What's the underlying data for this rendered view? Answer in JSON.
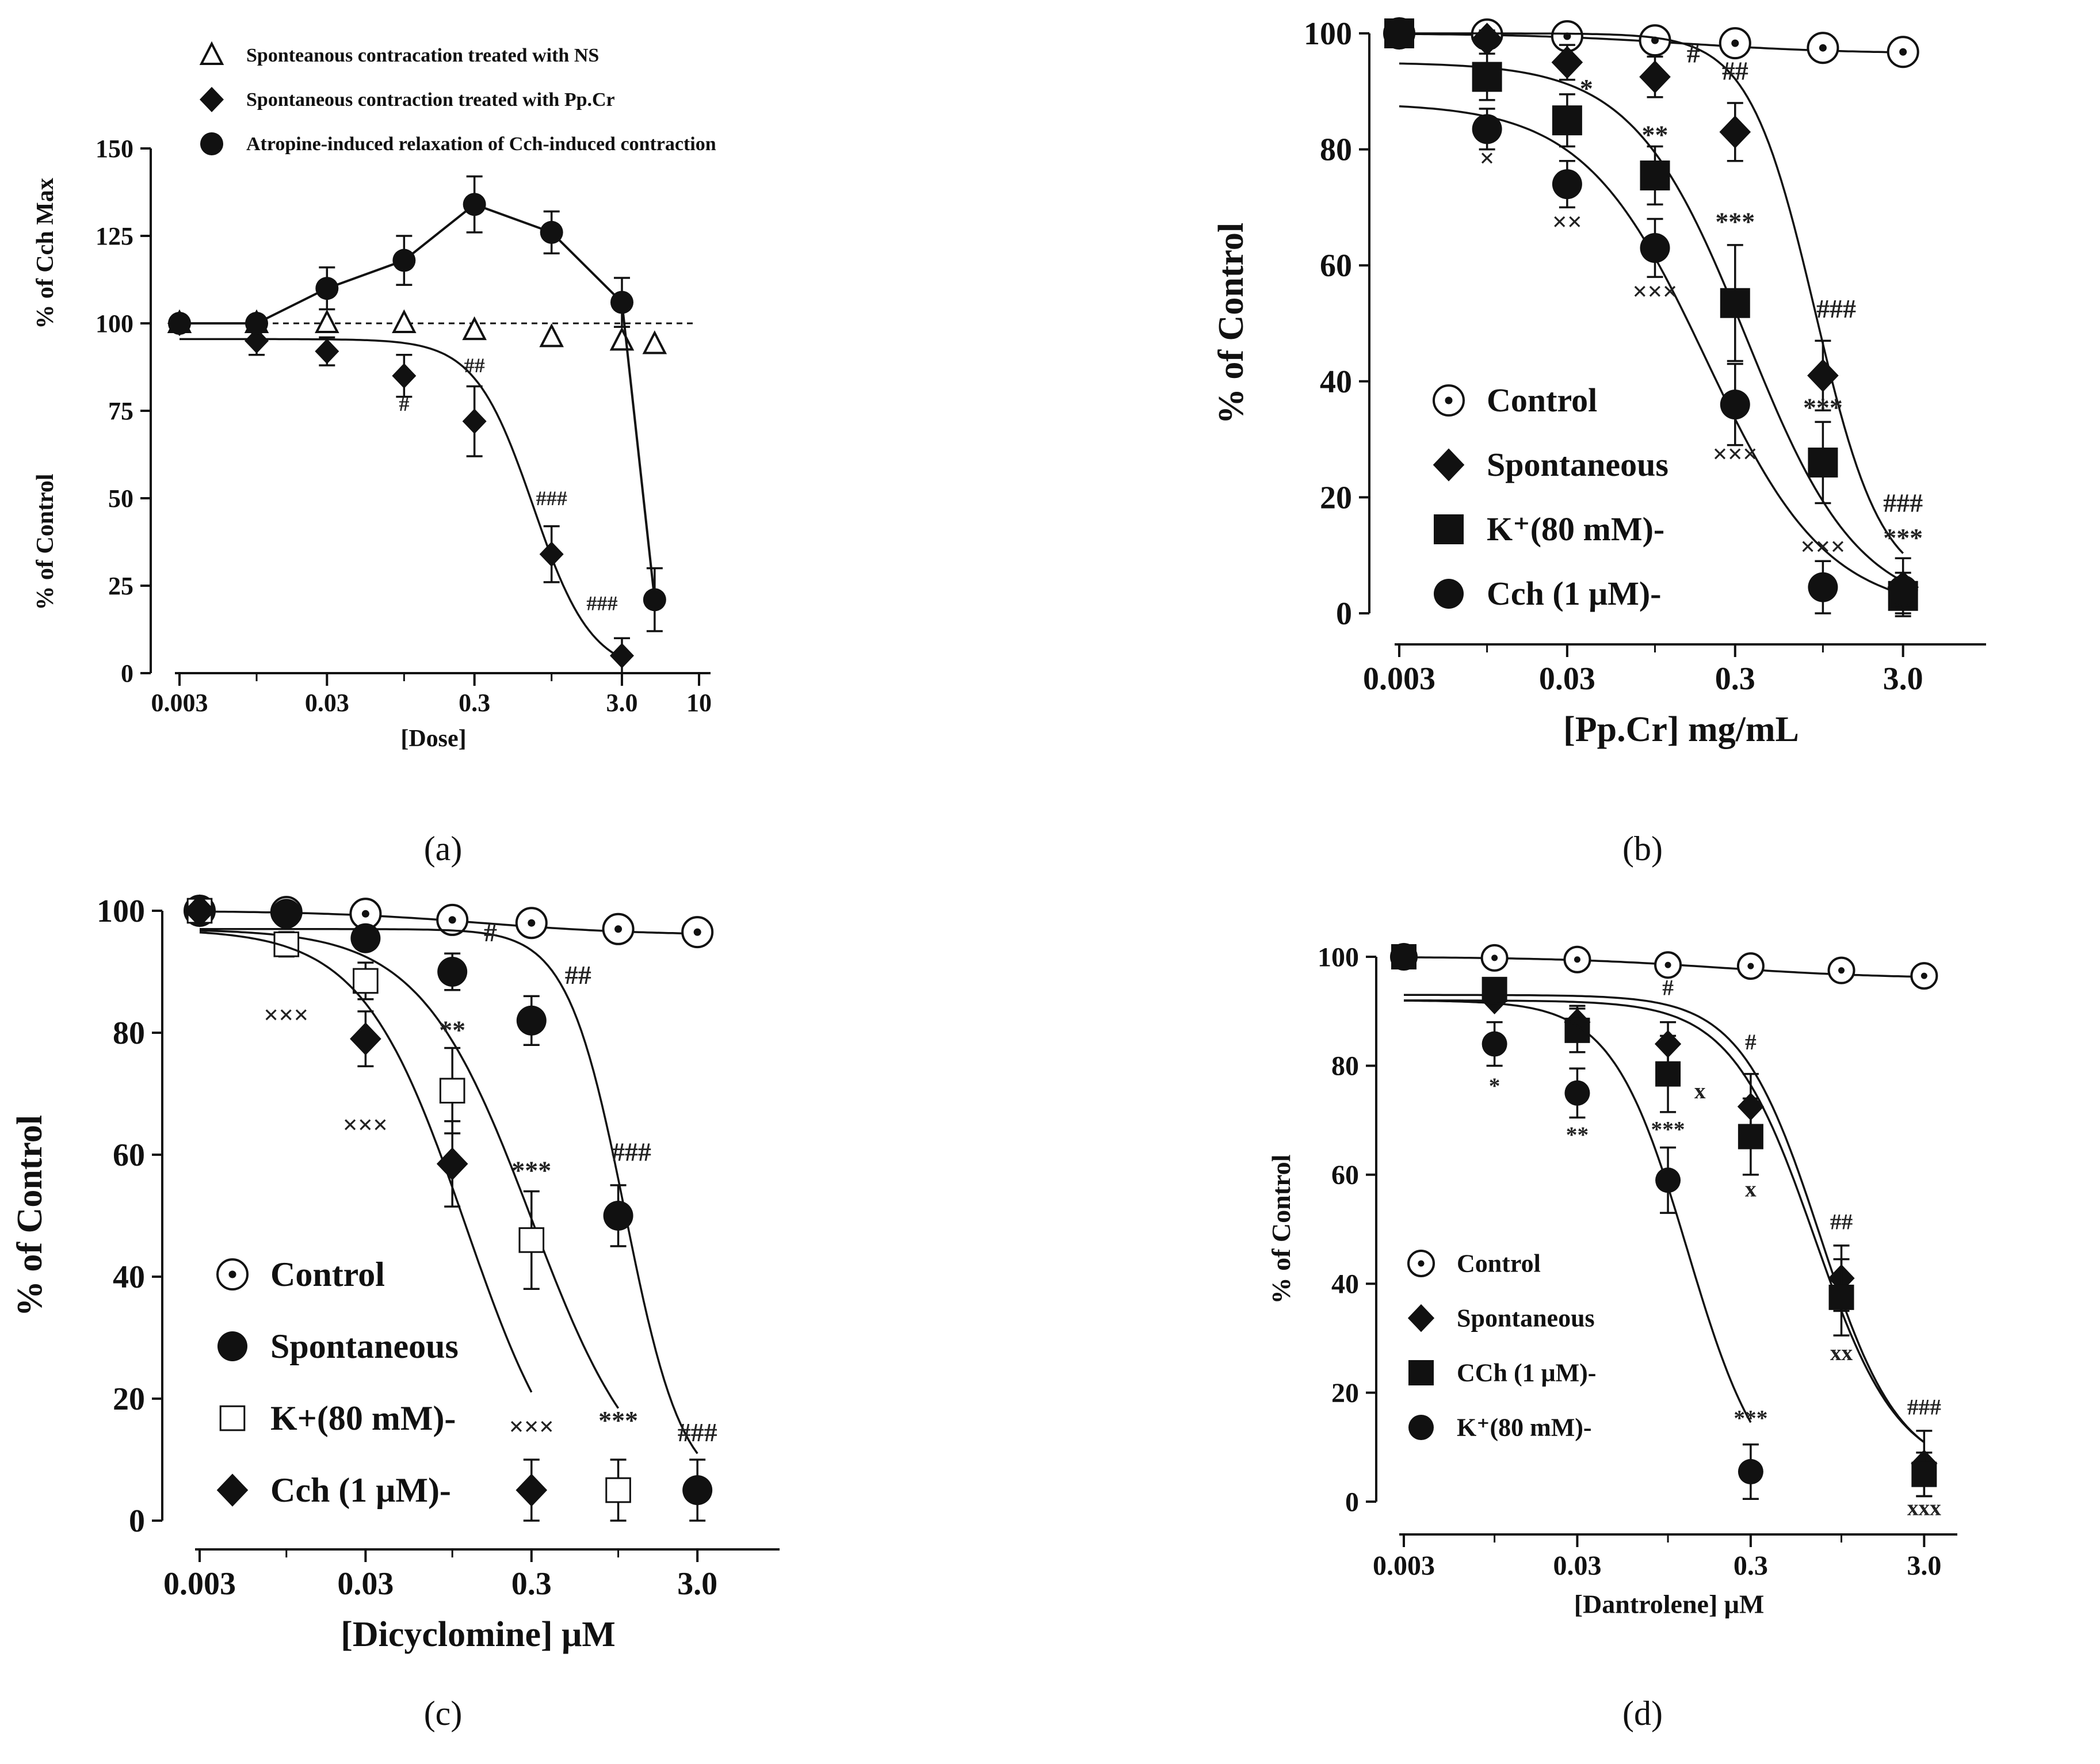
{
  "colors": {
    "ink": "#111111",
    "dashed": "#111111"
  },
  "chart_data": [
    {
      "panel": "a",
      "panel_label": "(a)",
      "type": "line",
      "xscale": "log",
      "xlabel": "[Dose]",
      "xlim": [
        0.003,
        10
      ],
      "xticks": [
        0.003,
        0.03,
        0.3,
        3.0,
        10
      ],
      "xtick_labels": [
        "0.003",
        "0.03",
        "0.3",
        "3.0",
        "10"
      ],
      "ylim": [
        0,
        150
      ],
      "yticks": [
        0,
        25,
        50,
        75,
        100,
        125,
        150
      ],
      "ytick_labels": [
        "0",
        "25",
        "50",
        "75",
        "100",
        "125",
        "150"
      ],
      "ylabel_top": "% of Cch Max",
      "ylabel_bottom": "% of Control",
      "reference_line": 100,
      "legend_position": "top",
      "series": [
        {
          "name": "Sponteanous contracation treated with NS",
          "marker": "triangle-open",
          "x": [
            0.003,
            0.01,
            0.03,
            0.1,
            0.3,
            1,
            3,
            5
          ],
          "y": [
            100,
            100,
            100,
            100,
            98,
            96,
            95,
            94
          ],
          "err": [
            0,
            0,
            0,
            0,
            0,
            0,
            0,
            0
          ],
          "curve": "none",
          "sig": []
        },
        {
          "name": "Spontaneous contraction treated with Pp.Cr",
          "marker": "diamond",
          "x": [
            0.003,
            0.01,
            0.03,
            0.1,
            0.3,
            1,
            3
          ],
          "y": [
            100,
            95,
            92,
            85,
            72,
            34,
            5
          ],
          "err": [
            0,
            4,
            4,
            6,
            10,
            8,
            5
          ],
          "curve": {
            "top": 95.5,
            "bottom": 0,
            "ec50": 0.75,
            "slope": 2.2
          },
          "sig": [
            [
              "#",
              0.1,
              75,
              "below"
            ],
            [
              "##",
              0.3,
              86,
              "above"
            ],
            [
              "###",
              1,
              48,
              "above"
            ],
            [
              "###",
              2.2,
              18,
              "above"
            ]
          ]
        },
        {
          "name": "Atropine-induced relaxation of Cch-induced contraction",
          "marker": "circle",
          "x": [
            0.003,
            0.01,
            0.03,
            0.1,
            0.3,
            1,
            3,
            5
          ],
          "y": [
            100,
            100,
            110,
            118,
            134,
            126,
            106,
            21
          ],
          "err": [
            0,
            0,
            6,
            7,
            8,
            6,
            7,
            9
          ],
          "curve": "connect",
          "sig": []
        }
      ]
    },
    {
      "panel": "b",
      "panel_label": "(b)",
      "type": "line",
      "xscale": "log",
      "xlabel": "[Pp.Cr] mg/mL",
      "xlim": [
        0.003,
        8
      ],
      "xticks": [
        0.003,
        0.03,
        0.3,
        3.0
      ],
      "xtick_labels": [
        "0.003",
        "0.03",
        "0.3",
        "3.0"
      ],
      "ylim": [
        0,
        100
      ],
      "yticks": [
        0,
        20,
        40,
        60,
        80,
        100
      ],
      "ytick_labels": [
        "0",
        "20",
        "40",
        "60",
        "80",
        "100"
      ],
      "ylabel": "% of Control",
      "legend_position": "lower-left",
      "series": [
        {
          "name": "Control",
          "marker": "circle-dot",
          "x": [
            0.003,
            0.01,
            0.03,
            0.1,
            0.3,
            1,
            3
          ],
          "y": [
            100,
            99.8,
            99.5,
            98.8,
            98.3,
            97.5,
            96.8
          ],
          "err": [
            0,
            0,
            0,
            0,
            0,
            0,
            0
          ],
          "curve": {
            "top": 100,
            "bottom": 96.5,
            "ec50": 0.15,
            "slope": 0.9
          },
          "sig": []
        },
        {
          "name": "Spontaneous",
          "marker": "diamond",
          "x": [
            0.003,
            0.01,
            0.03,
            0.1,
            0.3,
            1,
            3
          ],
          "y": [
            100,
            99,
            95,
            92.5,
            83,
            41,
            4.5
          ],
          "err": [
            0,
            1.5,
            3,
            3.5,
            5,
            6,
            5
          ],
          "curve": {
            "top": 100,
            "bottom": 4,
            "ec50": 0.9,
            "slope": 2.2
          },
          "sig": [
            [
              "#",
              0.13,
              95,
              "right"
            ],
            [
              "##",
              0.3,
              92,
              "above"
            ],
            [
              "###",
              1.2,
              51,
              "above"
            ],
            [
              "###",
              3.0,
              17.5,
              "above"
            ]
          ]
        },
        {
          "name": "K⁺(80 mM)-",
          "marker": "square",
          "x": [
            0.003,
            0.01,
            0.03,
            0.1,
            0.3,
            1,
            3
          ],
          "y": [
            100,
            92.5,
            85,
            75.5,
            53.5,
            26,
            3
          ],
          "err": [
            0,
            4,
            4.5,
            5,
            10,
            7,
            3
          ],
          "curve": {
            "top": 95,
            "bottom": 0,
            "ec50": 0.35,
            "slope": 1.3
          },
          "sig": [
            [
              "*",
              0.03,
              89,
              "right"
            ],
            [
              "**",
              0.1,
              81,
              "above"
            ],
            [
              "***",
              0.3,
              66,
              "above"
            ],
            [
              "***",
              1,
              34,
              "above"
            ],
            [
              "***",
              3.0,
              11.5,
              "above"
            ]
          ]
        },
        {
          "name": "Cch (1   μM)-",
          "marker": "circle",
          "x": [
            0.003,
            0.01,
            0.03,
            0.1,
            0.3,
            1,
            3
          ],
          "y": [
            100,
            83.5,
            74,
            63,
            36,
            4.5,
            4
          ],
          "err": [
            0,
            3.5,
            4,
            5,
            7,
            4.5,
            3
          ],
          "curve": {
            "top": 88,
            "bottom": 0,
            "ec50": 0.2,
            "slope": 1.2
          },
          "sig": [
            [
              "×",
              0.01,
              77,
              "below"
            ],
            [
              "××",
              0.03,
              66,
              "below"
            ],
            [
              "×××",
              0.1,
              54,
              "below"
            ],
            [
              "×××",
              0.3,
              26,
              "below"
            ],
            [
              "×××",
              1,
              10,
              "above"
            ]
          ]
        }
      ]
    },
    {
      "panel": "c",
      "panel_label": "(c)",
      "type": "line",
      "xscale": "log",
      "xlabel": "[Dicyclomine] μM",
      "xlim": [
        0.003,
        8
      ],
      "xticks": [
        0.003,
        0.03,
        0.3,
        3.0
      ],
      "xtick_labels": [
        "0.003",
        "0.03",
        "0.3",
        "3.0"
      ],
      "ylim": [
        0,
        100
      ],
      "yticks": [
        0,
        20,
        40,
        60,
        80,
        100
      ],
      "ytick_labels": [
        "0",
        "20",
        "40",
        "60",
        "80",
        "100"
      ],
      "ylabel": "% of Control",
      "legend_position": "lower-left",
      "series": [
        {
          "name": "Control",
          "marker": "circle-dot",
          "x": [
            0.003,
            0.01,
            0.03,
            0.1,
            0.3,
            1,
            3
          ],
          "y": [
            100,
            99.8,
            99.5,
            98.5,
            98,
            97,
            96.5
          ],
          "err": [
            0,
            0,
            0,
            0,
            0,
            0,
            0
          ],
          "curve": {
            "top": 100,
            "bottom": 96,
            "ec50": 0.15,
            "slope": 0.9
          },
          "sig": []
        },
        {
          "name": "Spontaneous",
          "marker": "circle",
          "x": [
            0.003,
            0.01,
            0.03,
            0.1,
            0.3,
            1,
            3
          ],
          "y": [
            100,
            99.5,
            95.5,
            90,
            82,
            50,
            5
          ],
          "err": [
            0,
            1,
            1.5,
            3,
            4,
            5,
            5
          ],
          "curve": {
            "top": 97,
            "bottom": 4,
            "ec50": 1.1,
            "slope": 2.5
          },
          "sig": [
            [
              "#",
              0.13,
              95,
              "right"
            ],
            [
              "##",
              0.4,
              88,
              "right"
            ],
            [
              "###",
              1.2,
              59,
              "above"
            ],
            [
              "###",
              3.0,
              13,
              "above"
            ]
          ]
        },
        {
          "name": "K+(80 mM)-",
          "marker": "square-open",
          "x": [
            0.003,
            0.01,
            0.03,
            0.1,
            0.3,
            1
          ],
          "y": [
            100,
            94.5,
            88.5,
            70.5,
            46,
            5
          ],
          "err": [
            0,
            2,
            3,
            7,
            8,
            5
          ],
          "curve": {
            "top": 97,
            "bottom": 2,
            "ec50": 0.3,
            "slope": 1.3
          },
          "sig": [
            [
              "**",
              0.1,
              79,
              "above"
            ],
            [
              "***",
              0.3,
              56,
              "above"
            ],
            [
              "***",
              1,
              15,
              "above"
            ]
          ]
        },
        {
          "name": "Cch (1  μM)-",
          "marker": "diamond",
          "x": [
            0.003,
            0.03,
            0.1,
            0.3
          ],
          "y": [
            100,
            79,
            58.5,
            5
          ],
          "err": [
            0,
            4.5,
            7,
            5
          ],
          "curve": {
            "top": 97,
            "bottom": 0,
            "ec50": 0.12,
            "slope": 1.4
          },
          "sig": [
            [
              "×××",
              0.015,
              81.5,
              "left"
            ],
            [
              "×××",
              0.045,
              63.5,
              "left"
            ],
            [
              "×××",
              0.3,
              14,
              "above"
            ]
          ]
        }
      ]
    },
    {
      "panel": "d",
      "panel_label": "(d)",
      "type": "line",
      "xscale": "log",
      "xlabel": "[Dantrolene] μM",
      "xlim": [
        0.003,
        4
      ],
      "xticks": [
        0.003,
        0.03,
        0.3,
        3.0
      ],
      "xtick_labels": [
        "0.003",
        "0.03",
        "0.3",
        "3.0"
      ],
      "ylim": [
        0,
        100
      ],
      "yticks": [
        0,
        20,
        40,
        60,
        80,
        100
      ],
      "ytick_labels": [
        "0",
        "20",
        "40",
        "60",
        "80",
        "100"
      ],
      "ylabel": "% of Control",
      "legend_position": "lower-left",
      "series": [
        {
          "name": "Control",
          "marker": "circle-dot",
          "x": [
            0.003,
            0.01,
            0.03,
            0.1,
            0.3,
            1,
            3
          ],
          "y": [
            100,
            99.8,
            99.5,
            98.5,
            98.3,
            97.5,
            96.5
          ],
          "err": [
            0,
            0,
            0,
            0,
            0,
            0,
            0
          ],
          "curve": {
            "top": 100,
            "bottom": 96,
            "ec50": 0.2,
            "slope": 0.9
          },
          "sig": []
        },
        {
          "name": "Spontaneous",
          "marker": "diamond",
          "x": [
            0.003,
            0.01,
            0.03,
            0.1,
            0.3,
            1,
            3
          ],
          "y": [
            100,
            92,
            88,
            84,
            72.5,
            41,
            7
          ],
          "err": [
            0,
            0,
            3,
            4,
            6,
            6,
            6
          ],
          "curve": {
            "top": 93,
            "bottom": 5,
            "ec50": 0.75,
            "slope": 1.9
          },
          "sig": [
            [
              "#",
              0.1,
              93,
              "above"
            ],
            [
              "#",
              0.3,
              83,
              "above"
            ],
            [
              "##",
              1,
              50,
              "above"
            ],
            [
              "###",
              3.0,
              16,
              "above"
            ]
          ]
        },
        {
          "name": "CCh (1 μM)-",
          "marker": "square",
          "x": [
            0.003,
            0.01,
            0.03,
            0.1,
            0.3,
            1,
            3
          ],
          "y": [
            100,
            94,
            86.5,
            78.5,
            67,
            37.5,
            5
          ],
          "err": [
            0,
            0,
            4,
            7,
            7,
            7,
            4
          ],
          "curve": {
            "top": 92,
            "bottom": 5,
            "ec50": 0.7,
            "slope": 1.8
          },
          "sig": [
            [
              "x",
              0.12,
              74,
              "right"
            ],
            [
              "x",
              0.3,
              56,
              "below"
            ],
            [
              "xx",
              1,
              26,
              "below"
            ],
            [
              "xxx",
              3.0,
              -2.5,
              "below"
            ]
          ]
        },
        {
          "name": "K⁺(80 mM)-",
          "marker": "circle",
          "x": [
            0.003,
            0.01,
            0.03,
            0.1,
            0.3
          ],
          "y": [
            100,
            84,
            75,
            59,
            5.5
          ],
          "err": [
            0,
            4,
            4.5,
            6,
            5
          ],
          "curve": {
            "top": 92,
            "bottom": 0,
            "ec50": 0.13,
            "slope": 2.0
          },
          "sig": [
            [
              "*",
              0.01,
              75,
              "below"
            ],
            [
              "**",
              0.03,
              66,
              "below"
            ],
            [
              "***",
              0.1,
              67,
              "above"
            ],
            [
              "***",
              0.3,
              14,
              "above"
            ]
          ]
        }
      ]
    }
  ]
}
